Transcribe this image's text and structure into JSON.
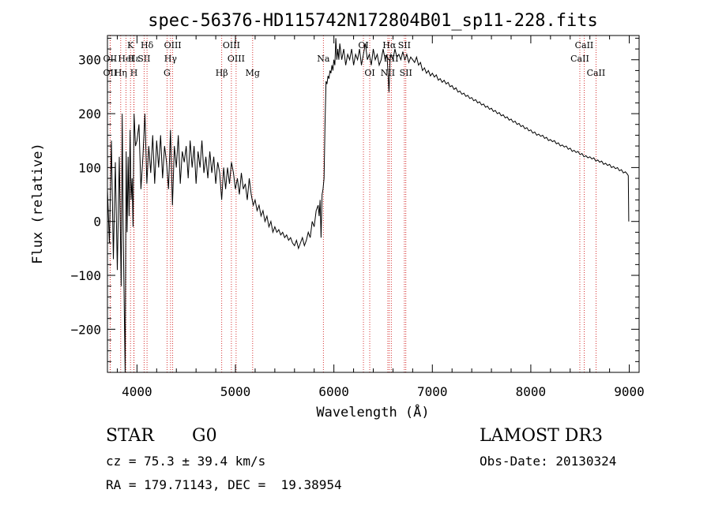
{
  "chart_data": {
    "type": "line",
    "title": "spec-56376-HD115742N172804B01_sp11-228.fits",
    "xlabel": "Wavelength (Å)",
    "ylabel": "Flux (relative)",
    "xlim": [
      3700,
      9100
    ],
    "ylim": [
      -280,
      345
    ],
    "xticks": [
      4000,
      5000,
      6000,
      7000,
      8000,
      9000
    ],
    "yticks": [
      -200,
      -100,
      0,
      100,
      200,
      300
    ],
    "series": [
      {
        "name": "spectrum",
        "points": [
          [
            3700,
            60
          ],
          [
            3720,
            -40
          ],
          [
            3740,
            150
          ],
          [
            3760,
            -70
          ],
          [
            3780,
            110
          ],
          [
            3800,
            -90
          ],
          [
            3820,
            120
          ],
          [
            3840,
            -120
          ],
          [
            3850,
            200
          ],
          [
            3860,
            -10
          ],
          [
            3880,
            -280
          ],
          [
            3890,
            130
          ],
          [
            3900,
            -20
          ],
          [
            3910,
            120
          ],
          [
            3920,
            10
          ],
          [
            3930,
            170
          ],
          [
            3940,
            40
          ],
          [
            3950,
            80
          ],
          [
            3960,
            -10
          ],
          [
            3970,
            200
          ],
          [
            3985,
            140
          ],
          [
            4000,
            150
          ],
          [
            4020,
            180
          ],
          [
            4040,
            60
          ],
          [
            4060,
            120
          ],
          [
            4080,
            200
          ],
          [
            4100,
            70
          ],
          [
            4120,
            140
          ],
          [
            4140,
            90
          ],
          [
            4160,
            160
          ],
          [
            4180,
            70
          ],
          [
            4200,
            150
          ],
          [
            4220,
            100
          ],
          [
            4240,
            160
          ],
          [
            4260,
            80
          ],
          [
            4280,
            140
          ],
          [
            4300,
            110
          ],
          [
            4320,
            60
          ],
          [
            4340,
            170
          ],
          [
            4360,
            30
          ],
          [
            4380,
            140
          ],
          [
            4400,
            100
          ],
          [
            4420,
            160
          ],
          [
            4440,
            70
          ],
          [
            4460,
            130
          ],
          [
            4480,
            110
          ],
          [
            4500,
            140
          ],
          [
            4520,
            80
          ],
          [
            4540,
            150
          ],
          [
            4560,
            100
          ],
          [
            4580,
            140
          ],
          [
            4600,
            70
          ],
          [
            4620,
            130
          ],
          [
            4640,
            100
          ],
          [
            4660,
            150
          ],
          [
            4680,
            90
          ],
          [
            4700,
            120
          ],
          [
            4720,
            80
          ],
          [
            4740,
            130
          ],
          [
            4760,
            90
          ],
          [
            4780,
            120
          ],
          [
            4800,
            70
          ],
          [
            4820,
            110
          ],
          [
            4840,
            90
          ],
          [
            4860,
            40
          ],
          [
            4880,
            100
          ],
          [
            4900,
            60
          ],
          [
            4920,
            100
          ],
          [
            4940,
            70
          ],
          [
            4960,
            110
          ],
          [
            4980,
            90
          ],
          [
            5000,
            60
          ],
          [
            5020,
            80
          ],
          [
            5040,
            50
          ],
          [
            5060,
            90
          ],
          [
            5080,
            60
          ],
          [
            5100,
            70
          ],
          [
            5120,
            40
          ],
          [
            5140,
            80
          ],
          [
            5160,
            50
          ],
          [
            5180,
            30
          ],
          [
            5200,
            40
          ],
          [
            5220,
            20
          ],
          [
            5240,
            30
          ],
          [
            5260,
            10
          ],
          [
            5280,
            20
          ],
          [
            5300,
            0
          ],
          [
            5320,
            10
          ],
          [
            5340,
            -10
          ],
          [
            5360,
            0
          ],
          [
            5380,
            -20
          ],
          [
            5400,
            -10
          ],
          [
            5420,
            -20
          ],
          [
            5440,
            -15
          ],
          [
            5460,
            -25
          ],
          [
            5480,
            -20
          ],
          [
            5500,
            -30
          ],
          [
            5520,
            -25
          ],
          [
            5540,
            -35
          ],
          [
            5560,
            -30
          ],
          [
            5580,
            -40
          ],
          [
            5600,
            -45
          ],
          [
            5620,
            -35
          ],
          [
            5640,
            -50
          ],
          [
            5660,
            -40
          ],
          [
            5680,
            -30
          ],
          [
            5700,
            -45
          ],
          [
            5720,
            -35
          ],
          [
            5740,
            -20
          ],
          [
            5760,
            -30
          ],
          [
            5780,
            0
          ],
          [
            5800,
            -10
          ],
          [
            5820,
            20
          ],
          [
            5840,
            30
          ],
          [
            5850,
            10
          ],
          [
            5860,
            40
          ],
          [
            5870,
            -30
          ],
          [
            5880,
            50
          ],
          [
            5890,
            60
          ],
          [
            5900,
            80
          ],
          [
            5910,
            180
          ],
          [
            5920,
            260
          ],
          [
            5930,
            255
          ],
          [
            5940,
            270
          ],
          [
            5950,
            265
          ],
          [
            5960,
            280
          ],
          [
            5970,
            275
          ],
          [
            5980,
            290
          ],
          [
            5990,
            280
          ],
          [
            6000,
            300
          ],
          [
            6010,
            290
          ],
          [
            6020,
            340
          ],
          [
            6030,
            300
          ],
          [
            6040,
            320
          ],
          [
            6050,
            300
          ],
          [
            6060,
            330
          ],
          [
            6080,
            300
          ],
          [
            6100,
            320
          ],
          [
            6120,
            290
          ],
          [
            6140,
            310
          ],
          [
            6160,
            300
          ],
          [
            6180,
            320
          ],
          [
            6200,
            290
          ],
          [
            6220,
            310
          ],
          [
            6240,
            300
          ],
          [
            6260,
            320
          ],
          [
            6280,
            290
          ],
          [
            6300,
            310
          ],
          [
            6320,
            330
          ],
          [
            6340,
            300
          ],
          [
            6360,
            310
          ],
          [
            6380,
            290
          ],
          [
            6400,
            320
          ],
          [
            6420,
            300
          ],
          [
            6440,
            310
          ],
          [
            6460,
            290
          ],
          [
            6480,
            300
          ],
          [
            6500,
            320
          ],
          [
            6520,
            300
          ],
          [
            6540,
            310
          ],
          [
            6560,
            240
          ],
          [
            6570,
            300
          ],
          [
            6580,
            310
          ],
          [
            6600,
            300
          ],
          [
            6620,
            320
          ],
          [
            6640,
            305
          ],
          [
            6660,
            310
          ],
          [
            6680,
            300
          ],
          [
            6700,
            315
          ],
          [
            6720,
            300
          ],
          [
            6740,
            310
          ],
          [
            6760,
            295
          ],
          [
            6780,
            305
          ],
          [
            6800,
            300
          ],
          [
            6820,
            295
          ],
          [
            6840,
            305
          ],
          [
            6860,
            290
          ],
          [
            6880,
            295
          ],
          [
            6900,
            280
          ],
          [
            6920,
            285
          ],
          [
            6940,
            275
          ],
          [
            6960,
            280
          ],
          [
            6980,
            270
          ],
          [
            7000,
            275
          ],
          [
            7020,
            268
          ],
          [
            7040,
            272
          ],
          [
            7060,
            262
          ],
          [
            7080,
            265
          ],
          [
            7100,
            258
          ],
          [
            7120,
            262
          ],
          [
            7140,
            255
          ],
          [
            7160,
            258
          ],
          [
            7180,
            250
          ],
          [
            7200,
            252
          ],
          [
            7220,
            245
          ],
          [
            7240,
            248
          ],
          [
            7260,
            240
          ],
          [
            7280,
            242
          ],
          [
            7300,
            236
          ],
          [
            7320,
            238
          ],
          [
            7340,
            232
          ],
          [
            7360,
            234
          ],
          [
            7380,
            228
          ],
          [
            7400,
            230
          ],
          [
            7420,
            224
          ],
          [
            7440,
            226
          ],
          [
            7460,
            220
          ],
          [
            7480,
            222
          ],
          [
            7500,
            216
          ],
          [
            7520,
            218
          ],
          [
            7540,
            212
          ],
          [
            7560,
            214
          ],
          [
            7580,
            208
          ],
          [
            7600,
            210
          ],
          [
            7620,
            204
          ],
          [
            7640,
            206
          ],
          [
            7660,
            200
          ],
          [
            7680,
            202
          ],
          [
            7700,
            196
          ],
          [
            7720,
            198
          ],
          [
            7740,
            192
          ],
          [
            7760,
            194
          ],
          [
            7780,
            188
          ],
          [
            7800,
            190
          ],
          [
            7820,
            184
          ],
          [
            7840,
            186
          ],
          [
            7860,
            180
          ],
          [
            7880,
            182
          ],
          [
            7900,
            176
          ],
          [
            7920,
            178
          ],
          [
            7940,
            172
          ],
          [
            7960,
            174
          ],
          [
            7980,
            168
          ],
          [
            8000,
            170
          ],
          [
            8020,
            164
          ],
          [
            8040,
            166
          ],
          [
            8060,
            160
          ],
          [
            8080,
            162
          ],
          [
            8100,
            158
          ],
          [
            8120,
            160
          ],
          [
            8140,
            154
          ],
          [
            8160,
            156
          ],
          [
            8180,
            150
          ],
          [
            8200,
            152
          ],
          [
            8220,
            148
          ],
          [
            8240,
            150
          ],
          [
            8260,
            144
          ],
          [
            8280,
            146
          ],
          [
            8300,
            140
          ],
          [
            8320,
            142
          ],
          [
            8340,
            138
          ],
          [
            8360,
            140
          ],
          [
            8380,
            134
          ],
          [
            8400,
            136
          ],
          [
            8420,
            130
          ],
          [
            8440,
            132
          ],
          [
            8460,
            128
          ],
          [
            8480,
            130
          ],
          [
            8500,
            124
          ],
          [
            8520,
            126
          ],
          [
            8540,
            120
          ],
          [
            8560,
            122
          ],
          [
            8580,
            118
          ],
          [
            8600,
            120
          ],
          [
            8620,
            116
          ],
          [
            8640,
            118
          ],
          [
            8660,
            112
          ],
          [
            8680,
            114
          ],
          [
            8700,
            110
          ],
          [
            8720,
            112
          ],
          [
            8740,
            106
          ],
          [
            8760,
            108
          ],
          [
            8780,
            104
          ],
          [
            8800,
            106
          ],
          [
            8820,
            100
          ],
          [
            8840,
            102
          ],
          [
            8860,
            98
          ],
          [
            8880,
            100
          ],
          [
            8900,
            94
          ],
          [
            8920,
            96
          ],
          [
            8940,
            90
          ],
          [
            8960,
            92
          ],
          [
            8980,
            88
          ],
          [
            8990,
            85
          ],
          [
            8995,
            0
          ]
        ]
      }
    ],
    "lines": [
      {
        "label": "Hδ",
        "x": 4102,
        "row": 1
      },
      {
        "label": "Hγ",
        "x": 4341,
        "row": 2
      },
      {
        "label": "Hβ",
        "x": 4861,
        "row": 3
      },
      {
        "label": "Hα",
        "x": 6563,
        "row": 1
      },
      {
        "label": "K",
        "x": 3934,
        "row": 1
      },
      {
        "label": "H",
        "x": 3969,
        "row": 3
      },
      {
        "label": "G",
        "x": 4305,
        "row": 3
      },
      {
        "label": "Mg",
        "x": 5175,
        "row": 3
      },
      {
        "label": "Na",
        "x": 5893,
        "row": 2
      },
      {
        "label": "OII",
        "x": 3727,
        "row": 2
      },
      {
        "label": "OII",
        "x": 3727,
        "row": 3
      },
      {
        "label": "Hε",
        "x": 3970,
        "row": 2
      },
      {
        "label": "Hη",
        "x": 3835,
        "row": 3
      },
      {
        "label": "HeI",
        "x": 3889,
        "row": 2
      },
      {
        "label": "SII",
        "x": 4072,
        "row": 2
      },
      {
        "label": "OIII",
        "x": 4363,
        "row": 1
      },
      {
        "label": "OIII",
        "x": 4959,
        "row": 1
      },
      {
        "label": "OIII",
        "x": 5007,
        "row": 2
      },
      {
        "label": "OI",
        "x": 6300,
        "row": 1
      },
      {
        "label": "OI",
        "x": 6364,
        "row": 3
      },
      {
        "label": "NII",
        "x": 6548,
        "row": 3
      },
      {
        "label": "NII",
        "x": 6583,
        "row": 2
      },
      {
        "label": "SII",
        "x": 6716,
        "row": 1
      },
      {
        "label": "SII",
        "x": 6731,
        "row": 3
      },
      {
        "label": "CaII",
        "x": 8498,
        "row": 2
      },
      {
        "label": "CaII",
        "x": 8542,
        "row": 1
      },
      {
        "label": "CaII",
        "x": 8662,
        "row": 3
      }
    ]
  },
  "info": {
    "class": "STAR",
    "subclass": "G0",
    "survey": "LAMOST DR3",
    "cz": "cz = 75.3 ± 39.4 km/s",
    "obs_date": "Obs-Date: 20130324",
    "coords": "RA = 179.71143, DEC =  19.38954"
  },
  "colors": {
    "line": "#000000",
    "marker": "#cc0000"
  }
}
